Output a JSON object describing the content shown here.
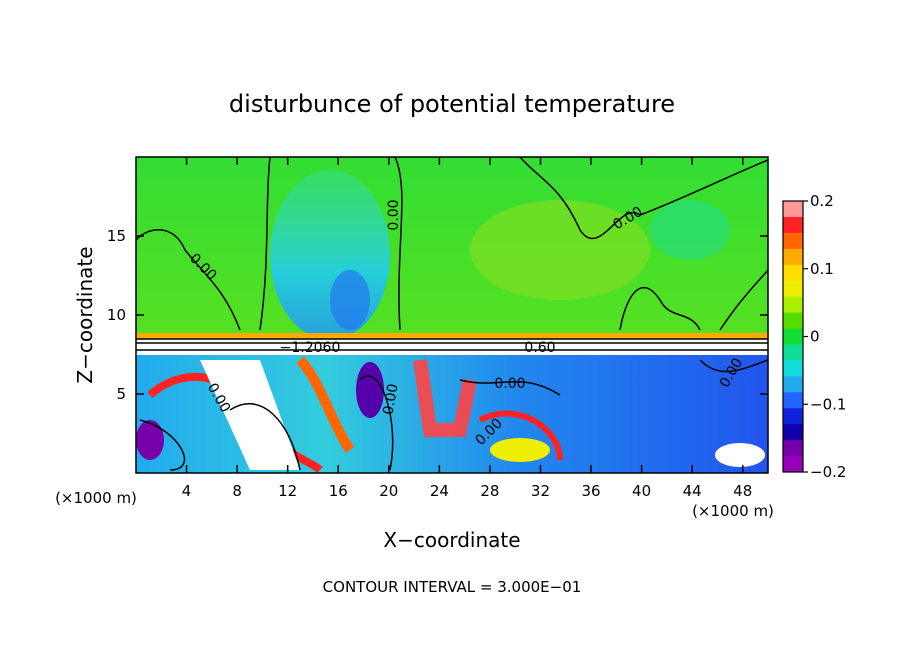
{
  "chart_data": {
    "type": "heatmap",
    "title": "disturbunce of potential temperature",
    "xlabel": "X−coordinate",
    "ylabel": "Z−coordinate",
    "x_unit": "(×1000 m)",
    "x_unit_right": "(×1000 m)",
    "xlim": [
      0,
      50
    ],
    "ylim": [
      0,
      20
    ],
    "x_ticks": [
      4,
      8,
      12,
      16,
      20,
      24,
      28,
      32,
      36,
      40,
      44,
      48
    ],
    "y_ticks": [
      5,
      10,
      15
    ],
    "colorbar": {
      "range": [
        -0.2,
        0.2
      ],
      "ticks": [
        "0.2",
        "0.1",
        "0",
        "−0.1",
        "−0.2"
      ],
      "colors": [
        "#ff9999",
        "#ff2222",
        "#ff6600",
        "#ffaa00",
        "#ffdd00",
        "#eeee00",
        "#aaee00",
        "#55dd00",
        "#11dd33",
        "#11dd99",
        "#11dddd",
        "#22aaee",
        "#2266ff",
        "#1122dd",
        "#1100aa",
        "#7700aa",
        "#9900bb"
      ]
    },
    "contour_labels": [
      "0.00",
      "0.00",
      "0.00",
      "0.00",
      "−1.2060",
      "0.60",
      "0.00",
      "0.00",
      "0.00",
      "0.00",
      "0.00"
    ],
    "grid": false,
    "legend": "colorbar right"
  },
  "footer": {
    "contour_interval": "CONTOUR INTERVAL = 3.000E−01"
  }
}
